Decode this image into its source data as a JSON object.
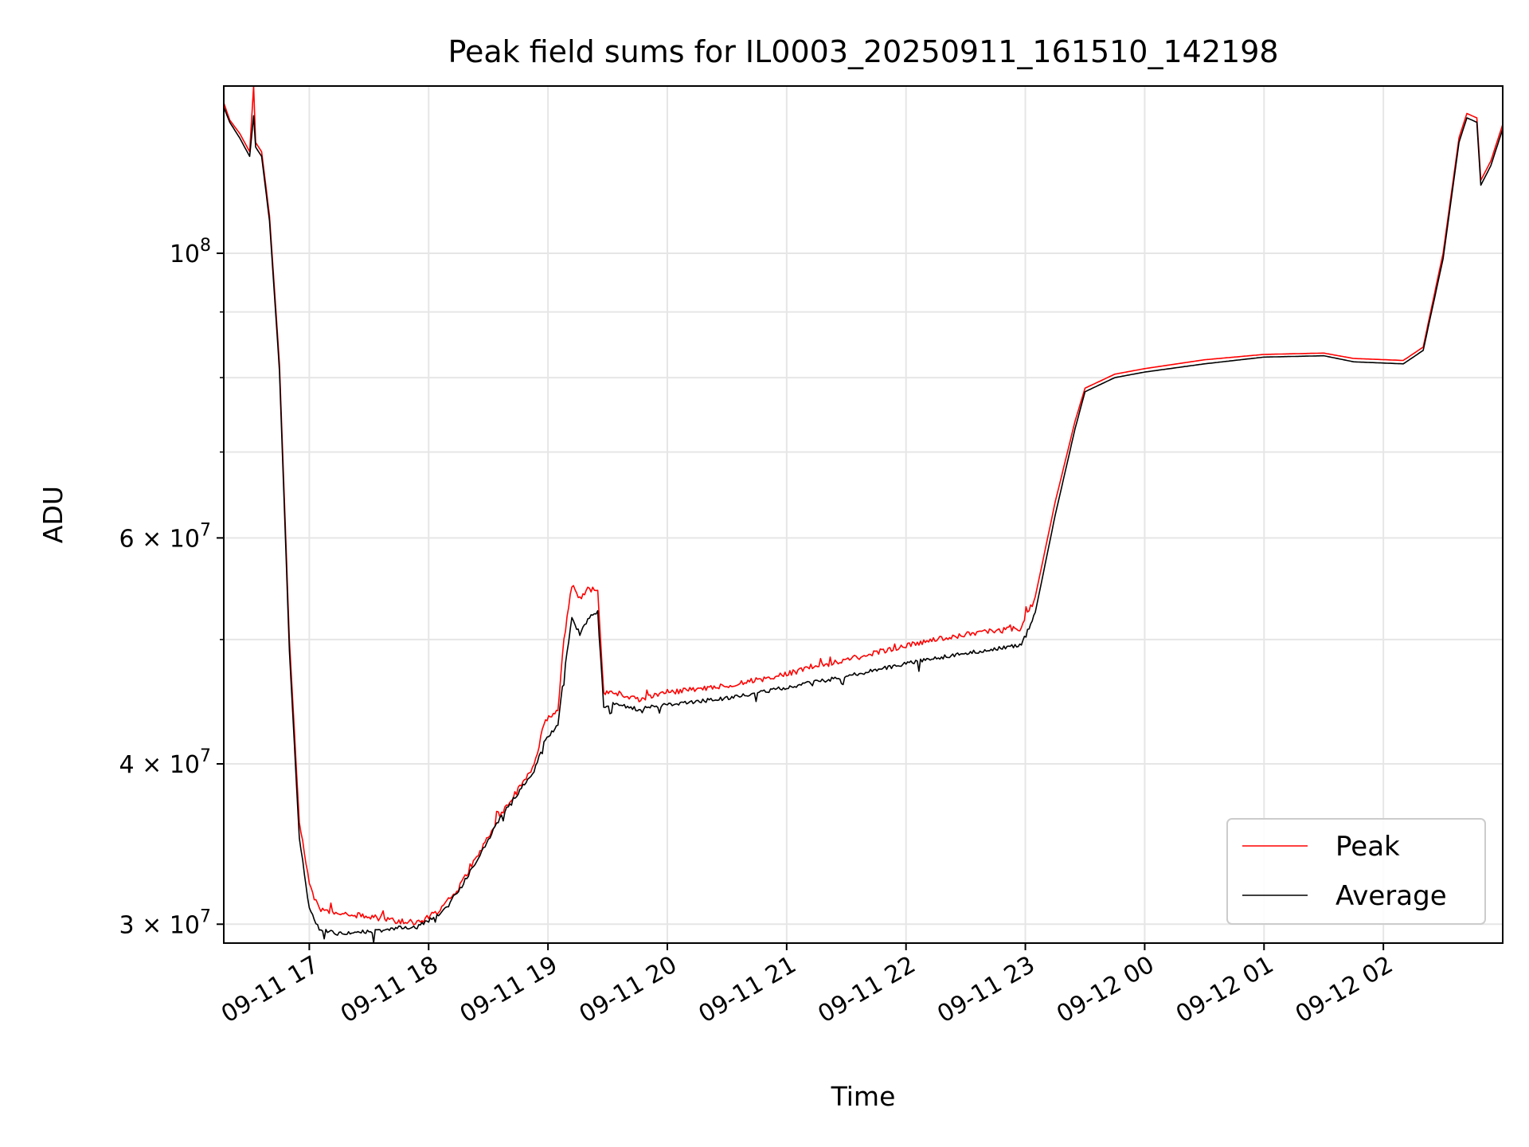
{
  "chart_data": {
    "type": "line",
    "title": "Peak field sums for IL0003_20250911_161510_142198",
    "xlabel": "Time",
    "ylabel": "ADU",
    "y_scale": "log",
    "ylim": [
      29000000,
      135000000
    ],
    "xlim": [
      "2025-09-11 16:17",
      "2025-09-12 03:00"
    ],
    "grid": true,
    "legend_position": "lower right",
    "x_ticks": [
      {
        "t": "2025-09-11 17:00",
        "label": "09-11 17"
      },
      {
        "t": "2025-09-11 18:00",
        "label": "09-11 18"
      },
      {
        "t": "2025-09-11 19:00",
        "label": "09-11 19"
      },
      {
        "t": "2025-09-11 20:00",
        "label": "09-11 20"
      },
      {
        "t": "2025-09-11 21:00",
        "label": "09-11 21"
      },
      {
        "t": "2025-09-11 22:00",
        "label": "09-11 22"
      },
      {
        "t": "2025-09-11 23:00",
        "label": "09-11 23"
      },
      {
        "t": "2025-09-12 00:00",
        "label": "09-12 00"
      },
      {
        "t": "2025-09-12 01:00",
        "label": "09-12 01"
      },
      {
        "t": "2025-09-12 02:00",
        "label": "09-12 02"
      }
    ],
    "y_ticks": [
      {
        "value": 30000000,
        "mant": "3",
        "exp": "7"
      },
      {
        "value": 40000000,
        "mant": "4",
        "exp": "7"
      },
      {
        "value": 60000000,
        "mant": "6",
        "exp": "7"
      },
      {
        "value": 100000000,
        "mant": "",
        "exp": "8"
      }
    ],
    "y_minor_ticks": [
      50000000,
      70000000,
      80000000,
      90000000
    ],
    "series": [
      {
        "name": "Peak",
        "color": "#ff0000",
        "points": [
          [
            "2025-09-11 16:17",
            131000000
          ],
          [
            "2025-09-11 16:20",
            127000000
          ],
          [
            "2025-09-11 16:25",
            124000000
          ],
          [
            "2025-09-11 16:30",
            120000000
          ],
          [
            "2025-09-11 16:32",
            135000000
          ],
          [
            "2025-09-11 16:33",
            122000000
          ],
          [
            "2025-09-11 16:36",
            120000000
          ],
          [
            "2025-09-11 16:40",
            107000000
          ],
          [
            "2025-09-11 16:45",
            82000000
          ],
          [
            "2025-09-11 16:50",
            50000000
          ],
          [
            "2025-09-11 16:55",
            36000000
          ],
          [
            "2025-09-11 17:00",
            32200000
          ],
          [
            "2025-09-11 17:05",
            30800000
          ],
          [
            "2025-09-11 17:15",
            30600000
          ],
          [
            "2025-09-11 17:30",
            30400000
          ],
          [
            "2025-09-11 17:45",
            30150000
          ],
          [
            "2025-09-11 17:55",
            30100000
          ],
          [
            "2025-09-11 18:05",
            30700000
          ],
          [
            "2025-09-11 18:15",
            32000000
          ],
          [
            "2025-09-11 18:25",
            34000000
          ],
          [
            "2025-09-11 18:35",
            36300000
          ],
          [
            "2025-09-11 18:45",
            38200000
          ],
          [
            "2025-09-11 18:53",
            39800000
          ],
          [
            "2025-09-11 18:58",
            43000000
          ],
          [
            "2025-09-11 19:05",
            44200000
          ],
          [
            "2025-09-11 19:08",
            50000000
          ],
          [
            "2025-09-11 19:12",
            55200000
          ],
          [
            "2025-09-11 19:16",
            53800000
          ],
          [
            "2025-09-11 19:20",
            54800000
          ],
          [
            "2025-09-11 19:25",
            54500000
          ],
          [
            "2025-09-11 19:28",
            45500000
          ],
          [
            "2025-09-11 19:35",
            45400000
          ],
          [
            "2025-09-11 19:45",
            44900000
          ],
          [
            "2025-09-11 20:00",
            45500000
          ],
          [
            "2025-09-11 20:30",
            46000000
          ],
          [
            "2025-09-11 21:00",
            47000000
          ],
          [
            "2025-09-11 21:30",
            48200000
          ],
          [
            "2025-09-11 22:00",
            49500000
          ],
          [
            "2025-09-11 22:30",
            50500000
          ],
          [
            "2025-09-11 22:58",
            51000000
          ],
          [
            "2025-09-11 23:05",
            54000000
          ],
          [
            "2025-09-11 23:15",
            64000000
          ],
          [
            "2025-09-11 23:25",
            74000000
          ],
          [
            "2025-09-11 23:30",
            78500000
          ],
          [
            "2025-09-11 23:45",
            80500000
          ],
          [
            "2025-09-12 00:00",
            81300000
          ],
          [
            "2025-09-12 00:30",
            82600000
          ],
          [
            "2025-09-12 01:00",
            83400000
          ],
          [
            "2025-09-12 01:30",
            83600000
          ],
          [
            "2025-09-12 01:45",
            82800000
          ],
          [
            "2025-09-12 02:10",
            82500000
          ],
          [
            "2025-09-12 02:20",
            84500000
          ],
          [
            "2025-09-12 02:30",
            100000000
          ],
          [
            "2025-09-12 02:38",
            123000000
          ],
          [
            "2025-09-12 02:42",
            128500000
          ],
          [
            "2025-09-12 02:47",
            127500000
          ],
          [
            "2025-09-12 02:49",
            114000000
          ],
          [
            "2025-09-12 02:54",
            118000000
          ],
          [
            "2025-09-12 03:00",
            126000000
          ]
        ]
      },
      {
        "name": "Average",
        "color": "#000000",
        "points": [
          [
            "2025-09-11 16:17",
            130000000
          ],
          [
            "2025-09-11 16:20",
            126500000
          ],
          [
            "2025-09-11 16:25",
            123000000
          ],
          [
            "2025-09-11 16:30",
            119000000
          ],
          [
            "2025-09-11 16:32",
            128000000
          ],
          [
            "2025-09-11 16:33",
            121000000
          ],
          [
            "2025-09-11 16:36",
            119000000
          ],
          [
            "2025-09-11 16:40",
            106000000
          ],
          [
            "2025-09-11 16:45",
            81000000
          ],
          [
            "2025-09-11 16:50",
            49000000
          ],
          [
            "2025-09-11 16:55",
            35000000
          ],
          [
            "2025-09-11 17:00",
            30800000
          ],
          [
            "2025-09-11 17:05",
            29700000
          ],
          [
            "2025-09-11 17:15",
            29500000
          ],
          [
            "2025-09-11 17:30",
            29600000
          ],
          [
            "2025-09-11 17:45",
            29800000
          ],
          [
            "2025-09-11 17:55",
            29900000
          ],
          [
            "2025-09-11 18:05",
            30500000
          ],
          [
            "2025-09-11 18:15",
            31800000
          ],
          [
            "2025-09-11 18:25",
            33800000
          ],
          [
            "2025-09-11 18:35",
            36100000
          ],
          [
            "2025-09-11 18:45",
            38000000
          ],
          [
            "2025-09-11 18:53",
            39500000
          ],
          [
            "2025-09-11 18:58",
            41500000
          ],
          [
            "2025-09-11 19:05",
            43000000
          ],
          [
            "2025-09-11 19:08",
            47000000
          ],
          [
            "2025-09-11 19:12",
            52000000
          ],
          [
            "2025-09-11 19:16",
            50500000
          ],
          [
            "2025-09-11 19:20",
            52000000
          ],
          [
            "2025-09-11 19:25",
            52500000
          ],
          [
            "2025-09-11 19:28",
            44300000
          ],
          [
            "2025-09-11 19:35",
            44600000
          ],
          [
            "2025-09-11 19:45",
            44100000
          ],
          [
            "2025-09-11 20:00",
            44500000
          ],
          [
            "2025-09-11 20:30",
            45000000
          ],
          [
            "2025-09-11 21:00",
            45900000
          ],
          [
            "2025-09-11 21:30",
            46800000
          ],
          [
            "2025-09-11 22:00",
            47900000
          ],
          [
            "2025-09-11 22:30",
            48800000
          ],
          [
            "2025-09-11 22:58",
            49500000
          ],
          [
            "2025-09-11 23:05",
            52500000
          ],
          [
            "2025-09-11 23:15",
            62500000
          ],
          [
            "2025-09-11 23:25",
            73000000
          ],
          [
            "2025-09-11 23:30",
            78000000
          ],
          [
            "2025-09-11 23:45",
            80000000
          ],
          [
            "2025-09-12 00:00",
            80800000
          ],
          [
            "2025-09-12 00:30",
            82000000
          ],
          [
            "2025-09-12 01:00",
            83000000
          ],
          [
            "2025-09-12 01:30",
            83200000
          ],
          [
            "2025-09-12 01:45",
            82300000
          ],
          [
            "2025-09-12 02:10",
            82000000
          ],
          [
            "2025-09-12 02:20",
            84000000
          ],
          [
            "2025-09-12 02:30",
            99000000
          ],
          [
            "2025-09-12 02:38",
            122000000
          ],
          [
            "2025-09-12 02:42",
            127500000
          ],
          [
            "2025-09-12 02:47",
            126500000
          ],
          [
            "2025-09-12 02:49",
            113000000
          ],
          [
            "2025-09-12 02:54",
            117000000
          ],
          [
            "2025-09-12 03:00",
            125000000
          ]
        ]
      }
    ]
  }
}
